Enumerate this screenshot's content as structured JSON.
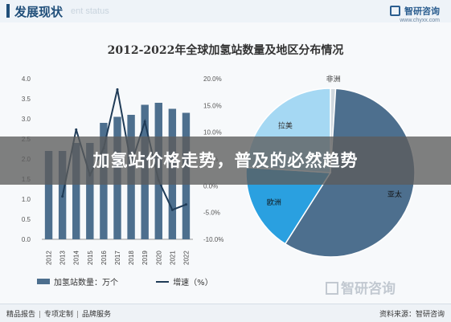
{
  "header": {
    "title": "发展现状",
    "subtitle_en": "ent status",
    "brand_name": "智研咨询",
    "brand_url": "www.chyxx.com"
  },
  "overlay_caption": "加氢站价格走势，普及的必然趋势",
  "watermark": "智研咨询",
  "footer": {
    "items": [
      "精品报告",
      "专项定制",
      "品牌服务"
    ],
    "source": "资料来源：智研咨询"
  },
  "colors": {
    "bar": "#4d6f8e",
    "line": "#1f3b57",
    "pie_asia": "#4d6f8e",
    "pie_europe": "#2aa0e0",
    "pie_latam": "#a5d8f3",
    "pie_africa": "#d0d8df"
  },
  "chart_data": [
    {
      "type": "bar",
      "title": "2012-2022年全球加氢站数量及地区分布情况",
      "categories": [
        "2012",
        "2013",
        "2014",
        "2015",
        "2016",
        "2017",
        "2018",
        "2019",
        "2020",
        "2021",
        "2022"
      ],
      "series": [
        {
          "name": "加氢站数量：万个",
          "type": "bar",
          "axis": "left",
          "values": [
            2.2,
            2.2,
            2.4,
            2.4,
            2.9,
            3.05,
            3.1,
            3.35,
            3.4,
            3.25,
            3.15
          ]
        },
        {
          "name": "增速（%）",
          "type": "line",
          "axis": "right",
          "values": [
            null,
            -2.0,
            10.5,
            2.0,
            7.0,
            18.0,
            4.0,
            12.0,
            1.0,
            -4.5,
            -3.5
          ]
        }
      ],
      "ylim_left": [
        0,
        4.0
      ],
      "yticks_left": [
        "0.0",
        "0.5",
        "1.0",
        "1.5",
        "2.0",
        "2.5",
        "3.0",
        "3.5",
        "4.0"
      ],
      "ylim_right": [
        -10,
        20
      ],
      "yticks_right": [
        "-10.0%",
        "-5.0%",
        "0.0%",
        "5.0%",
        "10.0%",
        "15.0%",
        "20.0%"
      ]
    },
    {
      "type": "pie",
      "labels": [
        "亚太",
        "欧洲",
        "拉美",
        "非洲"
      ],
      "values": [
        58,
        17,
        24,
        1
      ]
    }
  ]
}
